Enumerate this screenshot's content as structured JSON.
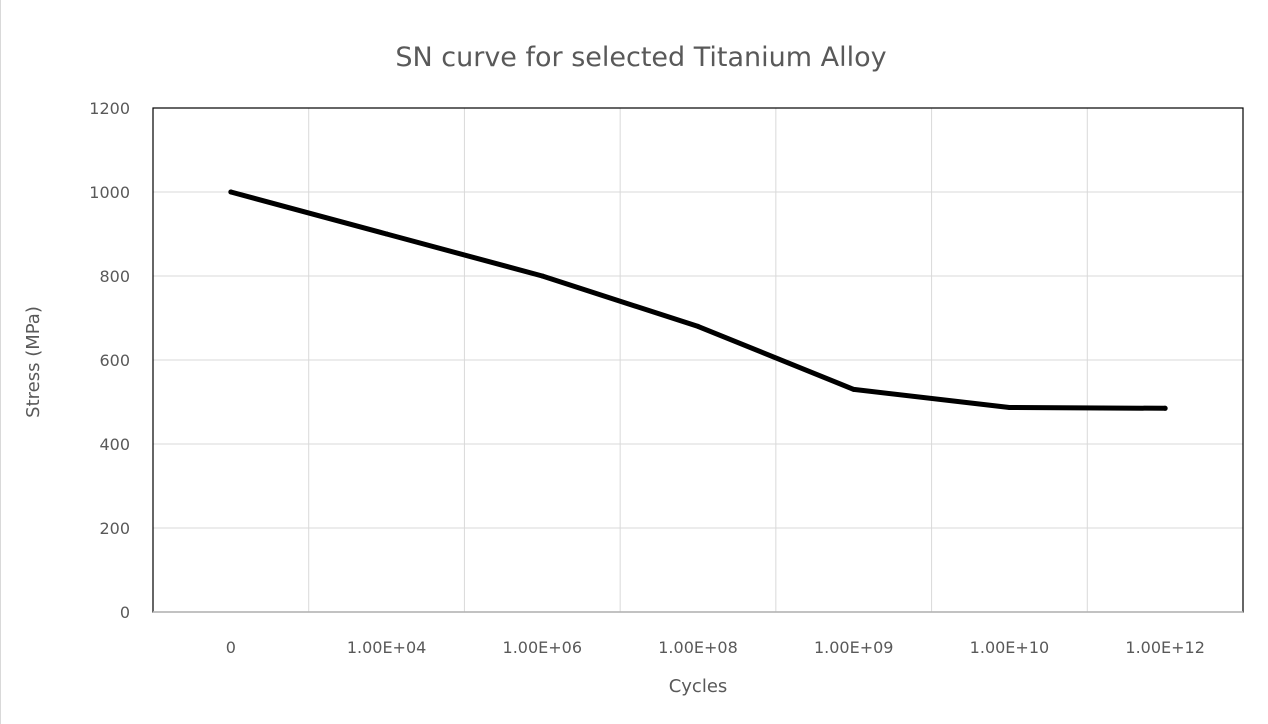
{
  "chart_data": {
    "type": "line",
    "title": "SN curve for selected Titanium Alloy",
    "xlabel": "Cycles",
    "ylabel": "Stress (MPa)",
    "categories": [
      "0",
      "1.00E+04",
      "1.00E+06",
      "1.00E+08",
      "1.00E+09",
      "1.00E+10",
      "1.00E+12"
    ],
    "series": [
      {
        "values": [
          1000,
          900,
          800,
          680,
          530,
          487,
          485
        ]
      }
    ],
    "ylim": [
      0,
      1200
    ],
    "yticks": [
      0,
      200,
      400,
      600,
      800,
      1000,
      1200
    ],
    "grid": true,
    "legend": "none",
    "colors": {
      "line": "#000000",
      "grid": "#d9d9d9",
      "axis": "#000000"
    }
  }
}
